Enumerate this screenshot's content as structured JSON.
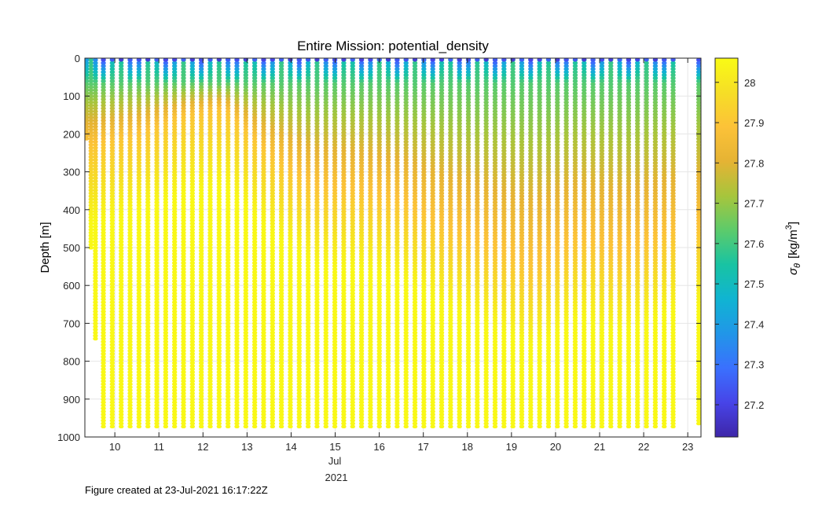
{
  "chart_data": {
    "type": "scatter",
    "title": "Entire Mission: potential_density",
    "xlabel": "",
    "ylabel": "Depth [m]",
    "x_ticks": [
      "10",
      "11",
      "12",
      "13",
      "14",
      "15",
      "16",
      "17",
      "18",
      "19",
      "20",
      "21",
      "22",
      "23"
    ],
    "x_tick_values": [
      10,
      11,
      12,
      13,
      14,
      15,
      16,
      17,
      18,
      19,
      20,
      21,
      22,
      23
    ],
    "x_month_label": "Jul",
    "x_year_label": "2021",
    "xlim": [
      9.32,
      23.3
    ],
    "ylim": [
      0,
      1000
    ],
    "y_reversed": true,
    "y_ticks": [
      0,
      100,
      200,
      300,
      400,
      500,
      600,
      700,
      800,
      900,
      1000
    ],
    "grid": true,
    "colorbar": {
      "label_symbol": "σ",
      "label_sub": "θ",
      "label_units": "[kg/m",
      "label_sup": "3",
      "label_close": "]",
      "clim": [
        27.12,
        28.06
      ],
      "ticks": [
        27.2,
        27.3,
        27.4,
        27.5,
        27.6,
        27.7,
        27.8,
        27.9,
        28
      ],
      "colormap": [
        "#3e26a8",
        "#4744e8",
        "#3a70fe",
        "#2196e8",
        "#10b4d2",
        "#18c3a3",
        "#5ccb6b",
        "#a7c53c",
        "#e5b334",
        "#fcc238",
        "#f6de26",
        "#f9fb15"
      ]
    },
    "profiles": {
      "start_day": 9.42,
      "spacing_days": 0.202,
      "count": 69,
      "max_depth_m": 975,
      "first_profile_depths_m": [
        210,
        500,
        740
      ],
      "last_profile_day": 23.25,
      "last_profile_max_depth_m": 968
    },
    "density_model": {
      "surface_sigma": [
        27.22,
        27.58
      ],
      "deep_sigma": 28.05,
      "pycnocline_depth_m": [
        [
          9.4,
          230
        ],
        [
          10.5,
          200
        ],
        [
          11.5,
          150
        ],
        [
          12.5,
          130
        ],
        [
          13.5,
          250
        ],
        [
          14.5,
          340
        ],
        [
          15.5,
          350
        ],
        [
          16.5,
          380
        ],
        [
          17.5,
          450
        ],
        [
          18.5,
          500
        ],
        [
          19.5,
          560
        ],
        [
          20.5,
          480
        ],
        [
          21.5,
          520
        ],
        [
          22.5,
          470
        ],
        [
          23.3,
          450
        ]
      ]
    }
  },
  "footer": {
    "text": "Figure created at 23-Jul-2021 16:17:22Z"
  }
}
